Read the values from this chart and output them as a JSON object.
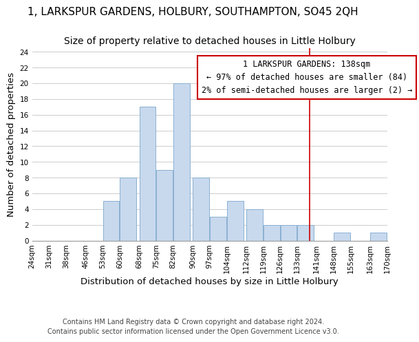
{
  "title": "1, LARKSPUR GARDENS, HOLBURY, SOUTHAMPTON, SO45 2QH",
  "subtitle": "Size of property relative to detached houses in Little Holbury",
  "xlabel": "Distribution of detached houses by size in Little Holbury",
  "ylabel": "Number of detached properties",
  "bar_left_edges": [
    53,
    60,
    68,
    75,
    82,
    90,
    97,
    104,
    112,
    119,
    126,
    133,
    148,
    163
  ],
  "bar_heights": [
    5,
    8,
    17,
    9,
    20,
    8,
    3,
    5,
    4,
    2,
    2,
    2,
    1,
    1
  ],
  "bin_width": 7,
  "bar_color": "#c8d9ee",
  "bar_edge_color": "#8ab0d0",
  "grid_color": "#cccccc",
  "vline_x": 138,
  "vline_color": "#cc0000",
  "annotation_box_color": "#cc0000",
  "annotation_lines": [
    "1 LARKSPUR GARDENS: 138sqm",
    "← 97% of detached houses are smaller (84)",
    "2% of semi-detached houses are larger (2) →"
  ],
  "xtick_positions": [
    24,
    31,
    38,
    46,
    53,
    60,
    68,
    75,
    82,
    90,
    97,
    104,
    112,
    119,
    126,
    133,
    141,
    148,
    155,
    163,
    170
  ],
  "xtick_labels": [
    "24sqm",
    "31sqm",
    "38sqm",
    "46sqm",
    "53sqm",
    "60sqm",
    "68sqm",
    "75sqm",
    "82sqm",
    "90sqm",
    "97sqm",
    "104sqm",
    "112sqm",
    "119sqm",
    "126sqm",
    "133sqm",
    "141sqm",
    "148sqm",
    "155sqm",
    "163sqm",
    "170sqm"
  ],
  "ytick_positions": [
    0,
    2,
    4,
    6,
    8,
    10,
    12,
    14,
    16,
    18,
    20,
    22,
    24
  ],
  "ylim": [
    0,
    24.5
  ],
  "xlim": [
    24,
    170
  ],
  "footer_lines": [
    "Contains HM Land Registry data © Crown copyright and database right 2024.",
    "Contains public sector information licensed under the Open Government Licence v3.0."
  ],
  "background_color": "#ffffff",
  "title_fontsize": 11,
  "subtitle_fontsize": 10,
  "axis_label_fontsize": 9.5,
  "tick_fontsize": 7.5,
  "annotation_fontsize": 8.5,
  "footer_fontsize": 7
}
